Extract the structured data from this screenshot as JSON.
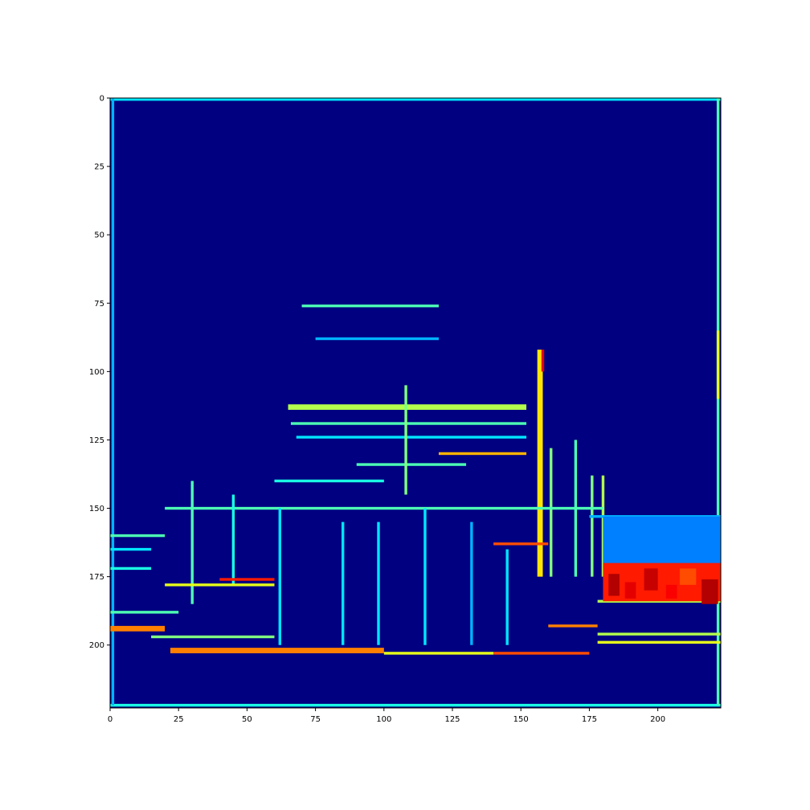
{
  "chart_data": {
    "type": "heatmap",
    "colormap": "jet",
    "title": "",
    "xlabel": "",
    "ylabel": "",
    "xlim": [
      0,
      223
    ],
    "ylim": [
      223,
      0
    ],
    "grid": false,
    "legend": "none",
    "x_ticks": [
      0,
      25,
      50,
      75,
      100,
      125,
      150,
      175,
      200
    ],
    "y_ticks": [
      0,
      25,
      50,
      75,
      100,
      125,
      150,
      175,
      200
    ],
    "x_tick_labels": [
      "0",
      "25",
      "50",
      "75",
      "100",
      "125",
      "150",
      "175",
      "200"
    ],
    "y_tick_labels": [
      "0",
      "25",
      "50",
      "75",
      "100",
      "125",
      "150",
      "175",
      "200"
    ],
    "background_value": 0.0,
    "features": [
      {
        "kind": "hline",
        "x": [
          0,
          223
        ],
        "y": 0,
        "value": 0.35,
        "width": 1
      },
      {
        "kind": "hline",
        "x": [
          0,
          223
        ],
        "y": 222,
        "value": 0.4,
        "width": 1
      },
      {
        "kind": "vline",
        "y": [
          0,
          222
        ],
        "x": 1,
        "value": 0.3,
        "width": 1
      },
      {
        "kind": "vline",
        "y": [
          0,
          222
        ],
        "x": 222,
        "value": 0.45,
        "width": 1
      },
      {
        "kind": "vline",
        "y": [
          85,
          110
        ],
        "x": 222,
        "value": 0.6,
        "width": 1
      },
      {
        "kind": "hline",
        "x": [
          70,
          120
        ],
        "y": 76,
        "value": 0.45,
        "width": 1
      },
      {
        "kind": "hline",
        "x": [
          75,
          120
        ],
        "y": 88,
        "value": 0.3,
        "width": 1
      },
      {
        "kind": "hline",
        "x": [
          65,
          152
        ],
        "y": 113,
        "value": 0.55,
        "width": 2
      },
      {
        "kind": "hline",
        "x": [
          66,
          152
        ],
        "y": 119,
        "value": 0.45,
        "width": 1
      },
      {
        "kind": "hline",
        "x": [
          68,
          152
        ],
        "y": 124,
        "value": 0.35,
        "width": 1
      },
      {
        "kind": "hline",
        "x": [
          120,
          152
        ],
        "y": 130,
        "value": 0.7,
        "width": 1
      },
      {
        "kind": "hline",
        "x": [
          90,
          130
        ],
        "y": 134,
        "value": 0.45,
        "width": 1
      },
      {
        "kind": "hline",
        "x": [
          60,
          100
        ],
        "y": 140,
        "value": 0.4,
        "width": 1
      },
      {
        "kind": "vline",
        "y": [
          92,
          175
        ],
        "x": 157,
        "value": 0.65,
        "width": 2
      },
      {
        "kind": "vline",
        "y": [
          92,
          100
        ],
        "x": 158,
        "value": 0.9,
        "width": 1
      },
      {
        "kind": "vline",
        "y": [
          105,
          145
        ],
        "x": 108,
        "value": 0.5,
        "width": 1
      },
      {
        "kind": "vline",
        "y": [
          128,
          175
        ],
        "x": 161,
        "value": 0.5,
        "width": 1
      },
      {
        "kind": "vline",
        "y": [
          125,
          175
        ],
        "x": 170,
        "value": 0.45,
        "width": 1
      },
      {
        "kind": "vline",
        "y": [
          138,
          175
        ],
        "x": 176,
        "value": 0.5,
        "width": 1
      },
      {
        "kind": "vline",
        "y": [
          138,
          175
        ],
        "x": 180,
        "value": 0.55,
        "width": 1
      },
      {
        "kind": "hline",
        "x": [
          20,
          180
        ],
        "y": 150,
        "value": 0.45,
        "width": 1
      },
      {
        "kind": "vline",
        "y": [
          140,
          185
        ],
        "x": 30,
        "value": 0.45,
        "width": 1
      },
      {
        "kind": "vline",
        "y": [
          145,
          178
        ],
        "x": 45,
        "value": 0.4,
        "width": 1
      },
      {
        "kind": "vline",
        "y": [
          150,
          200
        ],
        "x": 62,
        "value": 0.35,
        "width": 1
      },
      {
        "kind": "vline",
        "y": [
          155,
          200
        ],
        "x": 85,
        "value": 0.35,
        "width": 1
      },
      {
        "kind": "vline",
        "y": [
          155,
          200
        ],
        "x": 98,
        "value": 0.35,
        "width": 1
      },
      {
        "kind": "vline",
        "y": [
          150,
          200
        ],
        "x": 115,
        "value": 0.35,
        "width": 1
      },
      {
        "kind": "vline",
        "y": [
          155,
          200
        ],
        "x": 132,
        "value": 0.3,
        "width": 1
      },
      {
        "kind": "vline",
        "y": [
          165,
          200
        ],
        "x": 145,
        "value": 0.35,
        "width": 1
      },
      {
        "kind": "hline",
        "x": [
          0,
          20
        ],
        "y": 160,
        "value": 0.45,
        "width": 1
      },
      {
        "kind": "hline",
        "x": [
          0,
          15
        ],
        "y": 165,
        "value": 0.35,
        "width": 1
      },
      {
        "kind": "hline",
        "x": [
          0,
          15
        ],
        "y": 172,
        "value": 0.4,
        "width": 1
      },
      {
        "kind": "hline",
        "x": [
          0,
          25
        ],
        "y": 188,
        "value": 0.45,
        "width": 1
      },
      {
        "kind": "hline",
        "x": [
          0,
          20
        ],
        "y": 194,
        "value": 0.75,
        "width": 2
      },
      {
        "kind": "hline",
        "x": [
          20,
          60
        ],
        "y": 178,
        "value": 0.6,
        "width": 1
      },
      {
        "kind": "hline",
        "x": [
          40,
          60
        ],
        "y": 176,
        "value": 0.85,
        "width": 1
      },
      {
        "kind": "hline",
        "x": [
          15,
          60
        ],
        "y": 197,
        "value": 0.5,
        "width": 1
      },
      {
        "kind": "hline",
        "x": [
          22,
          100
        ],
        "y": 202,
        "value": 0.75,
        "width": 2
      },
      {
        "kind": "hline",
        "x": [
          100,
          140
        ],
        "y": 203,
        "value": 0.6,
        "width": 1
      },
      {
        "kind": "hline",
        "x": [
          140,
          175
        ],
        "y": 203,
        "value": 0.8,
        "width": 1
      },
      {
        "kind": "hline",
        "x": [
          160,
          178
        ],
        "y": 193,
        "value": 0.75,
        "width": 1
      },
      {
        "kind": "hline",
        "x": [
          178,
          223
        ],
        "y": 196,
        "value": 0.55,
        "width": 1
      },
      {
        "kind": "hline",
        "x": [
          178,
          223
        ],
        "y": 199,
        "value": 0.6,
        "width": 1
      },
      {
        "kind": "hline",
        "x": [
          178,
          223
        ],
        "y": 184,
        "value": 0.55,
        "width": 1
      },
      {
        "kind": "hline",
        "x": [
          175,
          223
        ],
        "y": 153,
        "value": 0.3,
        "width": 1
      },
      {
        "kind": "hline",
        "x": [
          140,
          160
        ],
        "y": 163,
        "value": 0.8,
        "width": 1
      },
      {
        "kind": "blob",
        "x": [
          180,
          223
        ],
        "y": [
          153,
          172
        ],
        "value": 0.25
      },
      {
        "kind": "blob",
        "x": [
          180,
          223
        ],
        "y": [
          170,
          184
        ],
        "value": 0.85
      },
      {
        "kind": "blob",
        "x": [
          182,
          186
        ],
        "y": [
          174,
          182
        ],
        "value": 0.95
      },
      {
        "kind": "blob",
        "x": [
          188,
          192
        ],
        "y": [
          177,
          183
        ],
        "value": 0.9
      },
      {
        "kind": "blob",
        "x": [
          195,
          200
        ],
        "y": [
          172,
          180
        ],
        "value": 0.93
      },
      {
        "kind": "blob",
        "x": [
          203,
          207
        ],
        "y": [
          178,
          183
        ],
        "value": 0.88
      },
      {
        "kind": "blob",
        "x": [
          216,
          222
        ],
        "y": [
          176,
          185
        ],
        "value": 0.95
      },
      {
        "kind": "blob",
        "x": [
          208,
          214
        ],
        "y": [
          172,
          178
        ],
        "value": 0.8
      }
    ]
  }
}
